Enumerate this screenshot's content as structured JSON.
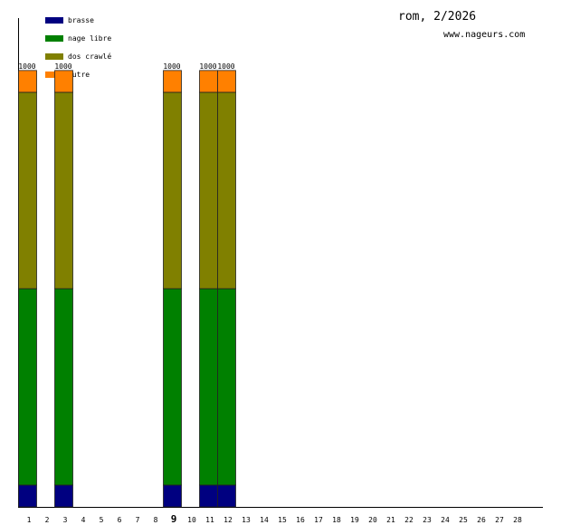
{
  "chart_data": {
    "type": "bar",
    "stacked": true,
    "title": "rom, 2/2026",
    "subtitle": "www.nageurs.com",
    "categories": [
      "1",
      "2",
      "3",
      "4",
      "5",
      "6",
      "7",
      "8",
      "9",
      "10",
      "11",
      "12",
      "13",
      "14",
      "15",
      "16",
      "17",
      "18",
      "19",
      "20",
      "21",
      "22",
      "23",
      "24",
      "25",
      "26",
      "27",
      "28"
    ],
    "bold_index": 8,
    "series": [
      {
        "name": "brasse",
        "color": "#000080",
        "values": [
          50,
          null,
          50,
          null,
          null,
          null,
          null,
          null,
          50,
          null,
          50,
          50,
          null,
          null,
          null,
          null,
          null,
          null,
          null,
          null,
          null,
          null,
          null,
          null,
          null,
          null,
          null,
          null
        ]
      },
      {
        "name": "nage libre",
        "color": "#008000",
        "values": [
          450,
          null,
          450,
          null,
          null,
          null,
          null,
          null,
          450,
          null,
          450,
          450,
          null,
          null,
          null,
          null,
          null,
          null,
          null,
          null,
          null,
          null,
          null,
          null,
          null,
          null,
          null,
          null
        ]
      },
      {
        "name": "dos crawlé",
        "color": "#808000",
        "values": [
          450,
          null,
          450,
          null,
          null,
          null,
          null,
          null,
          450,
          null,
          450,
          450,
          null,
          null,
          null,
          null,
          null,
          null,
          null,
          null,
          null,
          null,
          null,
          null,
          null,
          null,
          null,
          null
        ]
      },
      {
        "name": "autre",
        "color": "#ff8000",
        "values": [
          50,
          null,
          50,
          null,
          null,
          null,
          null,
          null,
          50,
          null,
          50,
          50,
          null,
          null,
          null,
          null,
          null,
          null,
          null,
          null,
          null,
          null,
          null,
          null,
          null,
          null,
          null,
          null
        ]
      }
    ],
    "totals": [
      1000,
      null,
      1000,
      null,
      null,
      null,
      null,
      null,
      1000,
      null,
      1000,
      1000,
      null,
      null,
      null,
      null,
      null,
      null,
      null,
      null,
      null,
      null,
      null,
      null,
      null,
      null,
      null,
      null
    ],
    "ylim": [
      0,
      1120
    ]
  }
}
